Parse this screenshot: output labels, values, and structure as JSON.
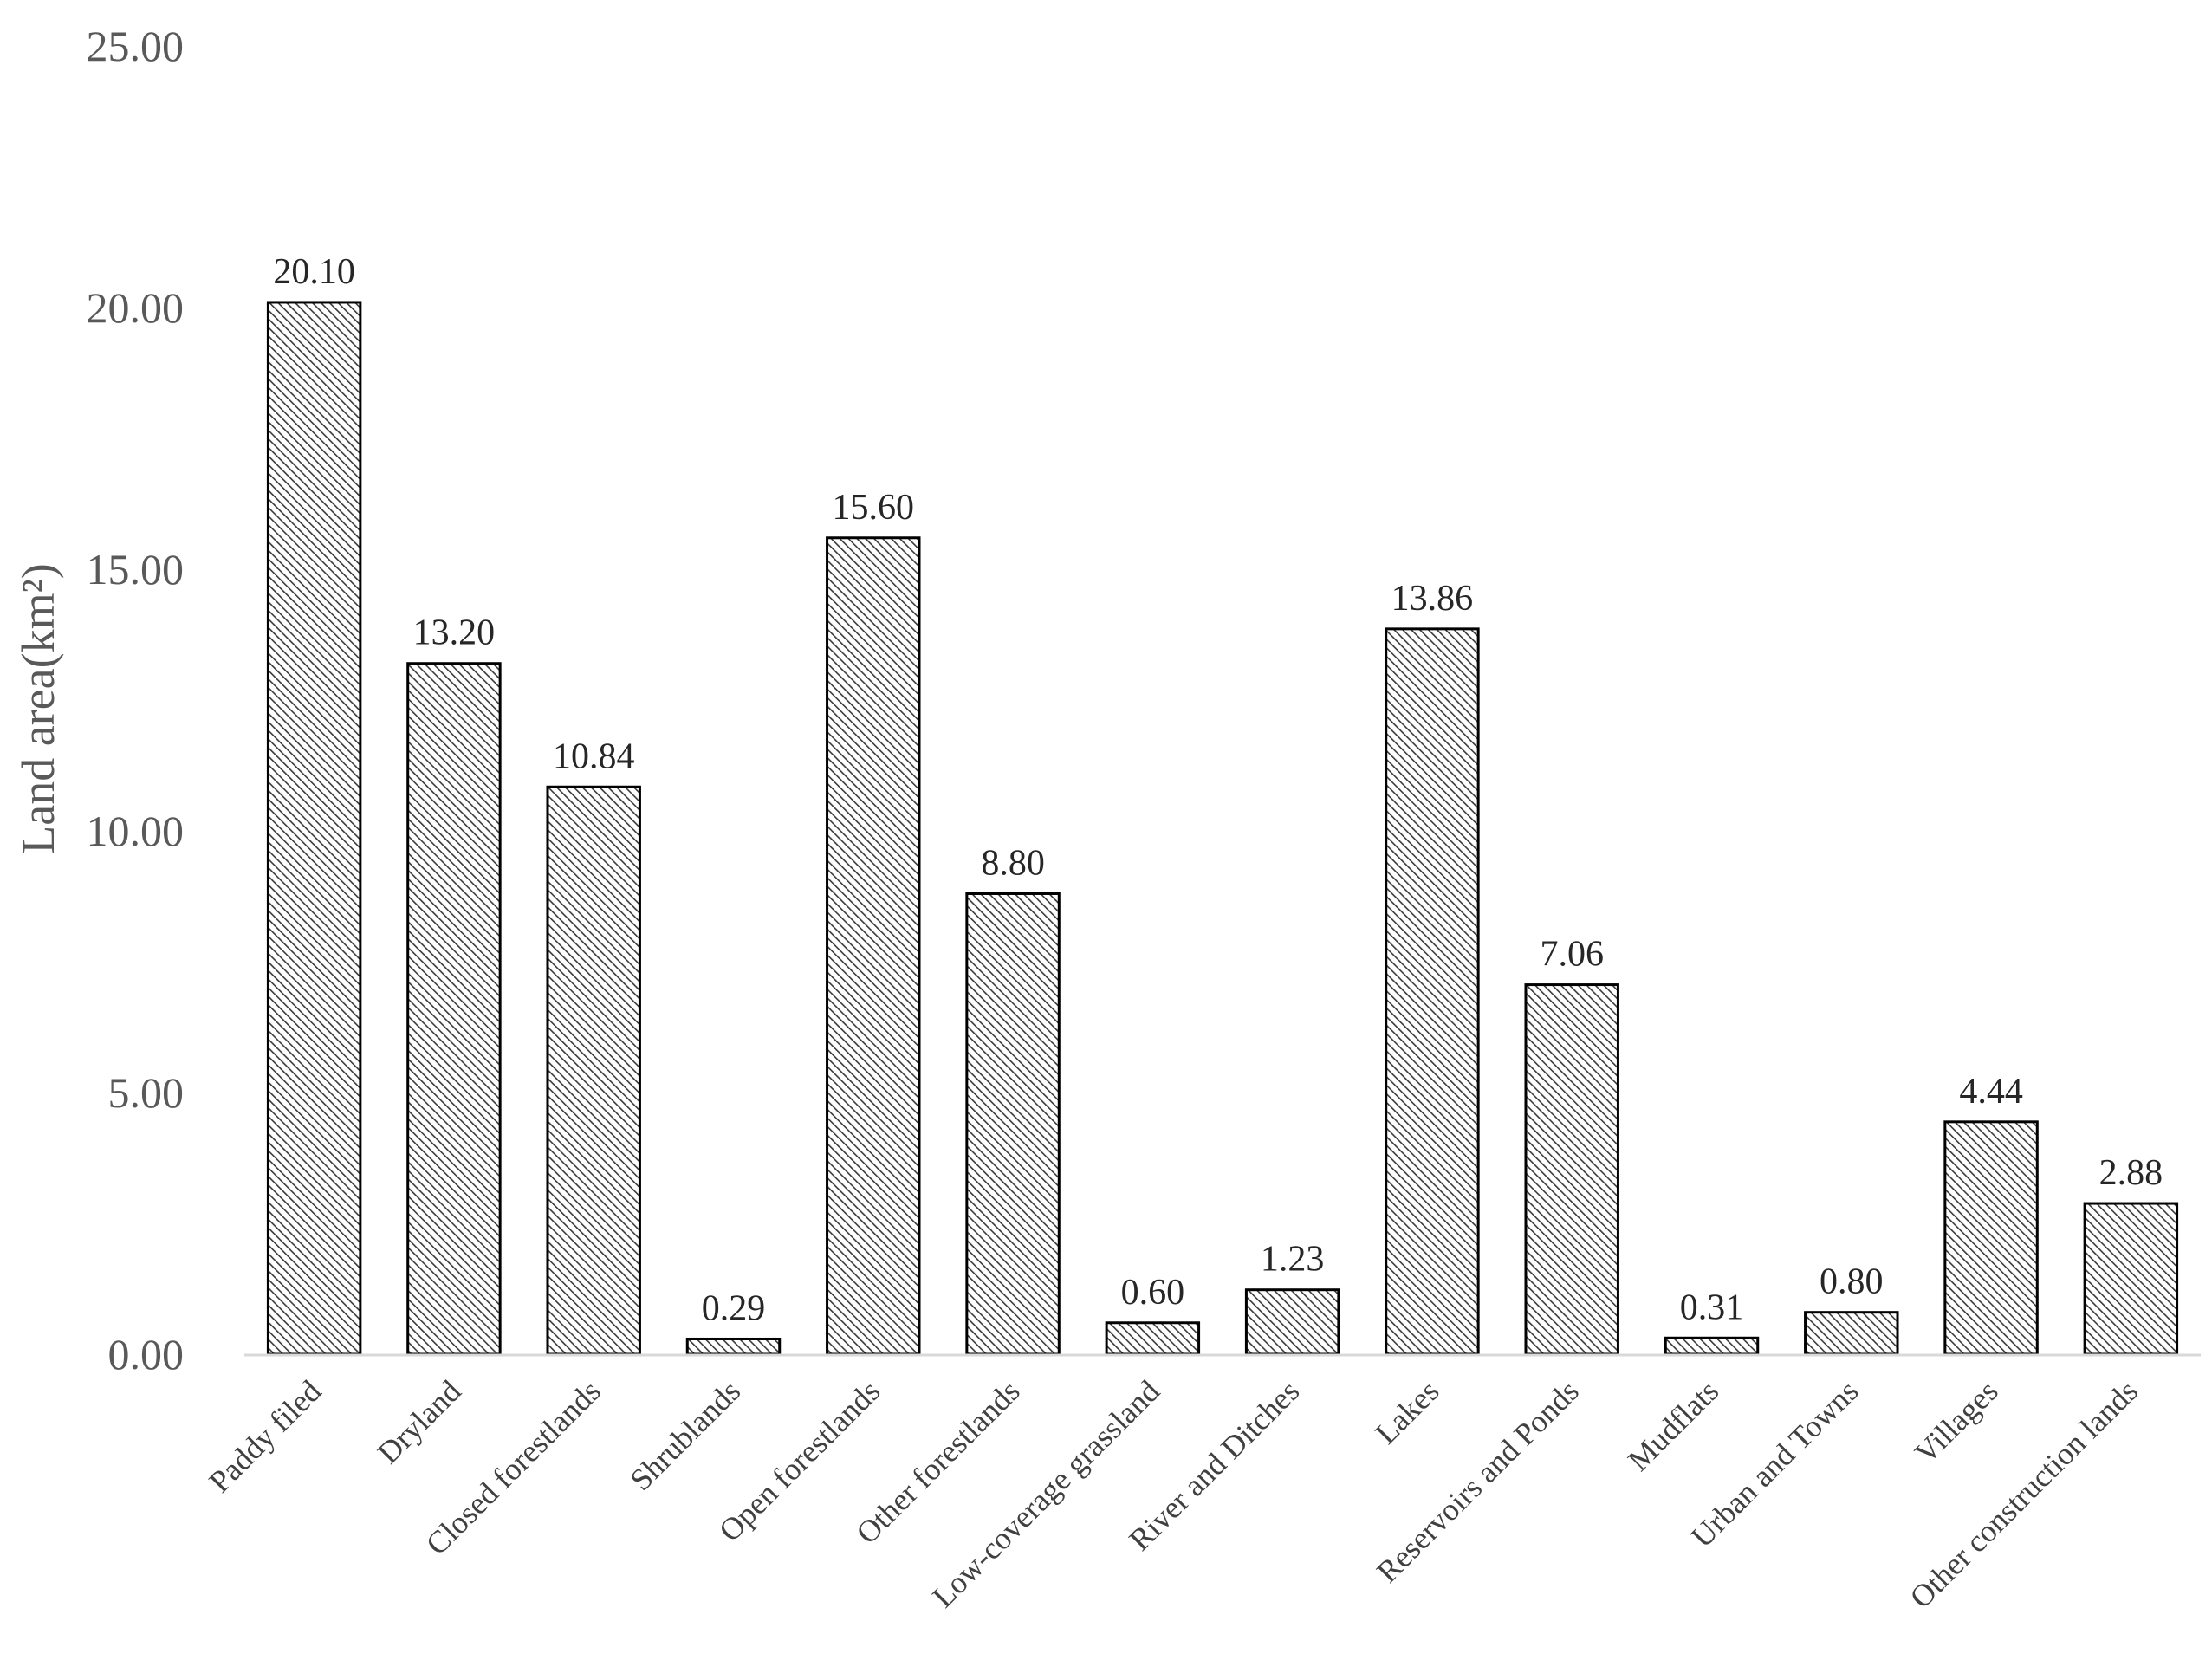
{
  "chart_data": {
    "type": "bar",
    "title": "",
    "xlabel": "",
    "ylabel": "Land area(km²)",
    "ylim": [
      0,
      25
    ],
    "yticks": [
      "0.00",
      "5.00",
      "10.00",
      "15.00",
      "20.00",
      "25.00"
    ],
    "grid": false,
    "legend": "none",
    "bar_fill": "hatched-gray",
    "bar_stroke": "#000000",
    "categories": [
      "Paddy filed",
      "Dryland",
      "Closed forestlands",
      "Shrublands",
      "Open forestlands",
      "Other forestlands",
      "Low-coverage grassland",
      "River and Ditches",
      "Lakes",
      "Reservoirs and Ponds",
      "Mudflats",
      "Urban and Towns",
      "Villages",
      "Other construction lands"
    ],
    "values": [
      20.1,
      13.2,
      10.84,
      0.29,
      15.6,
      8.8,
      0.6,
      1.23,
      13.86,
      7.06,
      0.31,
      0.8,
      4.44,
      2.88
    ],
    "data_labels": [
      "20.10",
      "13.20",
      "10.84",
      "0.29",
      "15.60",
      "8.80",
      "0.60",
      "1.23",
      "13.86",
      "7.06",
      "0.31",
      "0.80",
      "4.44",
      "2.88"
    ]
  }
}
